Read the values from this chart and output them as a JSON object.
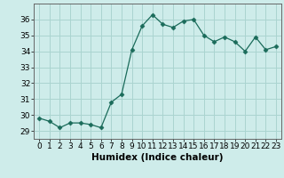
{
  "x": [
    0,
    1,
    2,
    3,
    4,
    5,
    6,
    7,
    8,
    9,
    10,
    11,
    12,
    13,
    14,
    15,
    16,
    17,
    18,
    19,
    20,
    21,
    22,
    23
  ],
  "y": [
    29.8,
    29.6,
    29.2,
    29.5,
    29.5,
    29.4,
    29.2,
    30.8,
    31.3,
    34.1,
    35.6,
    36.3,
    35.7,
    35.5,
    35.9,
    36.0,
    35.0,
    34.6,
    34.9,
    34.6,
    34.0,
    34.9,
    34.1,
    34.3
  ],
  "line_color": "#1a6b5a",
  "marker": "D",
  "marker_size": 2.5,
  "bg_color": "#ceecea",
  "grid_color": "#aad4d0",
  "tick_color": "#000000",
  "xlabel": "Humidex (Indice chaleur)",
  "ylim": [
    28.5,
    37.0
  ],
  "xlim": [
    -0.5,
    23.5
  ],
  "yticks": [
    29,
    30,
    31,
    32,
    33,
    34,
    35,
    36
  ],
  "xticks": [
    0,
    1,
    2,
    3,
    4,
    5,
    6,
    7,
    8,
    9,
    10,
    11,
    12,
    13,
    14,
    15,
    16,
    17,
    18,
    19,
    20,
    21,
    22,
    23
  ],
  "xlabel_fontsize": 7.5,
  "tick_fontsize": 6.5
}
